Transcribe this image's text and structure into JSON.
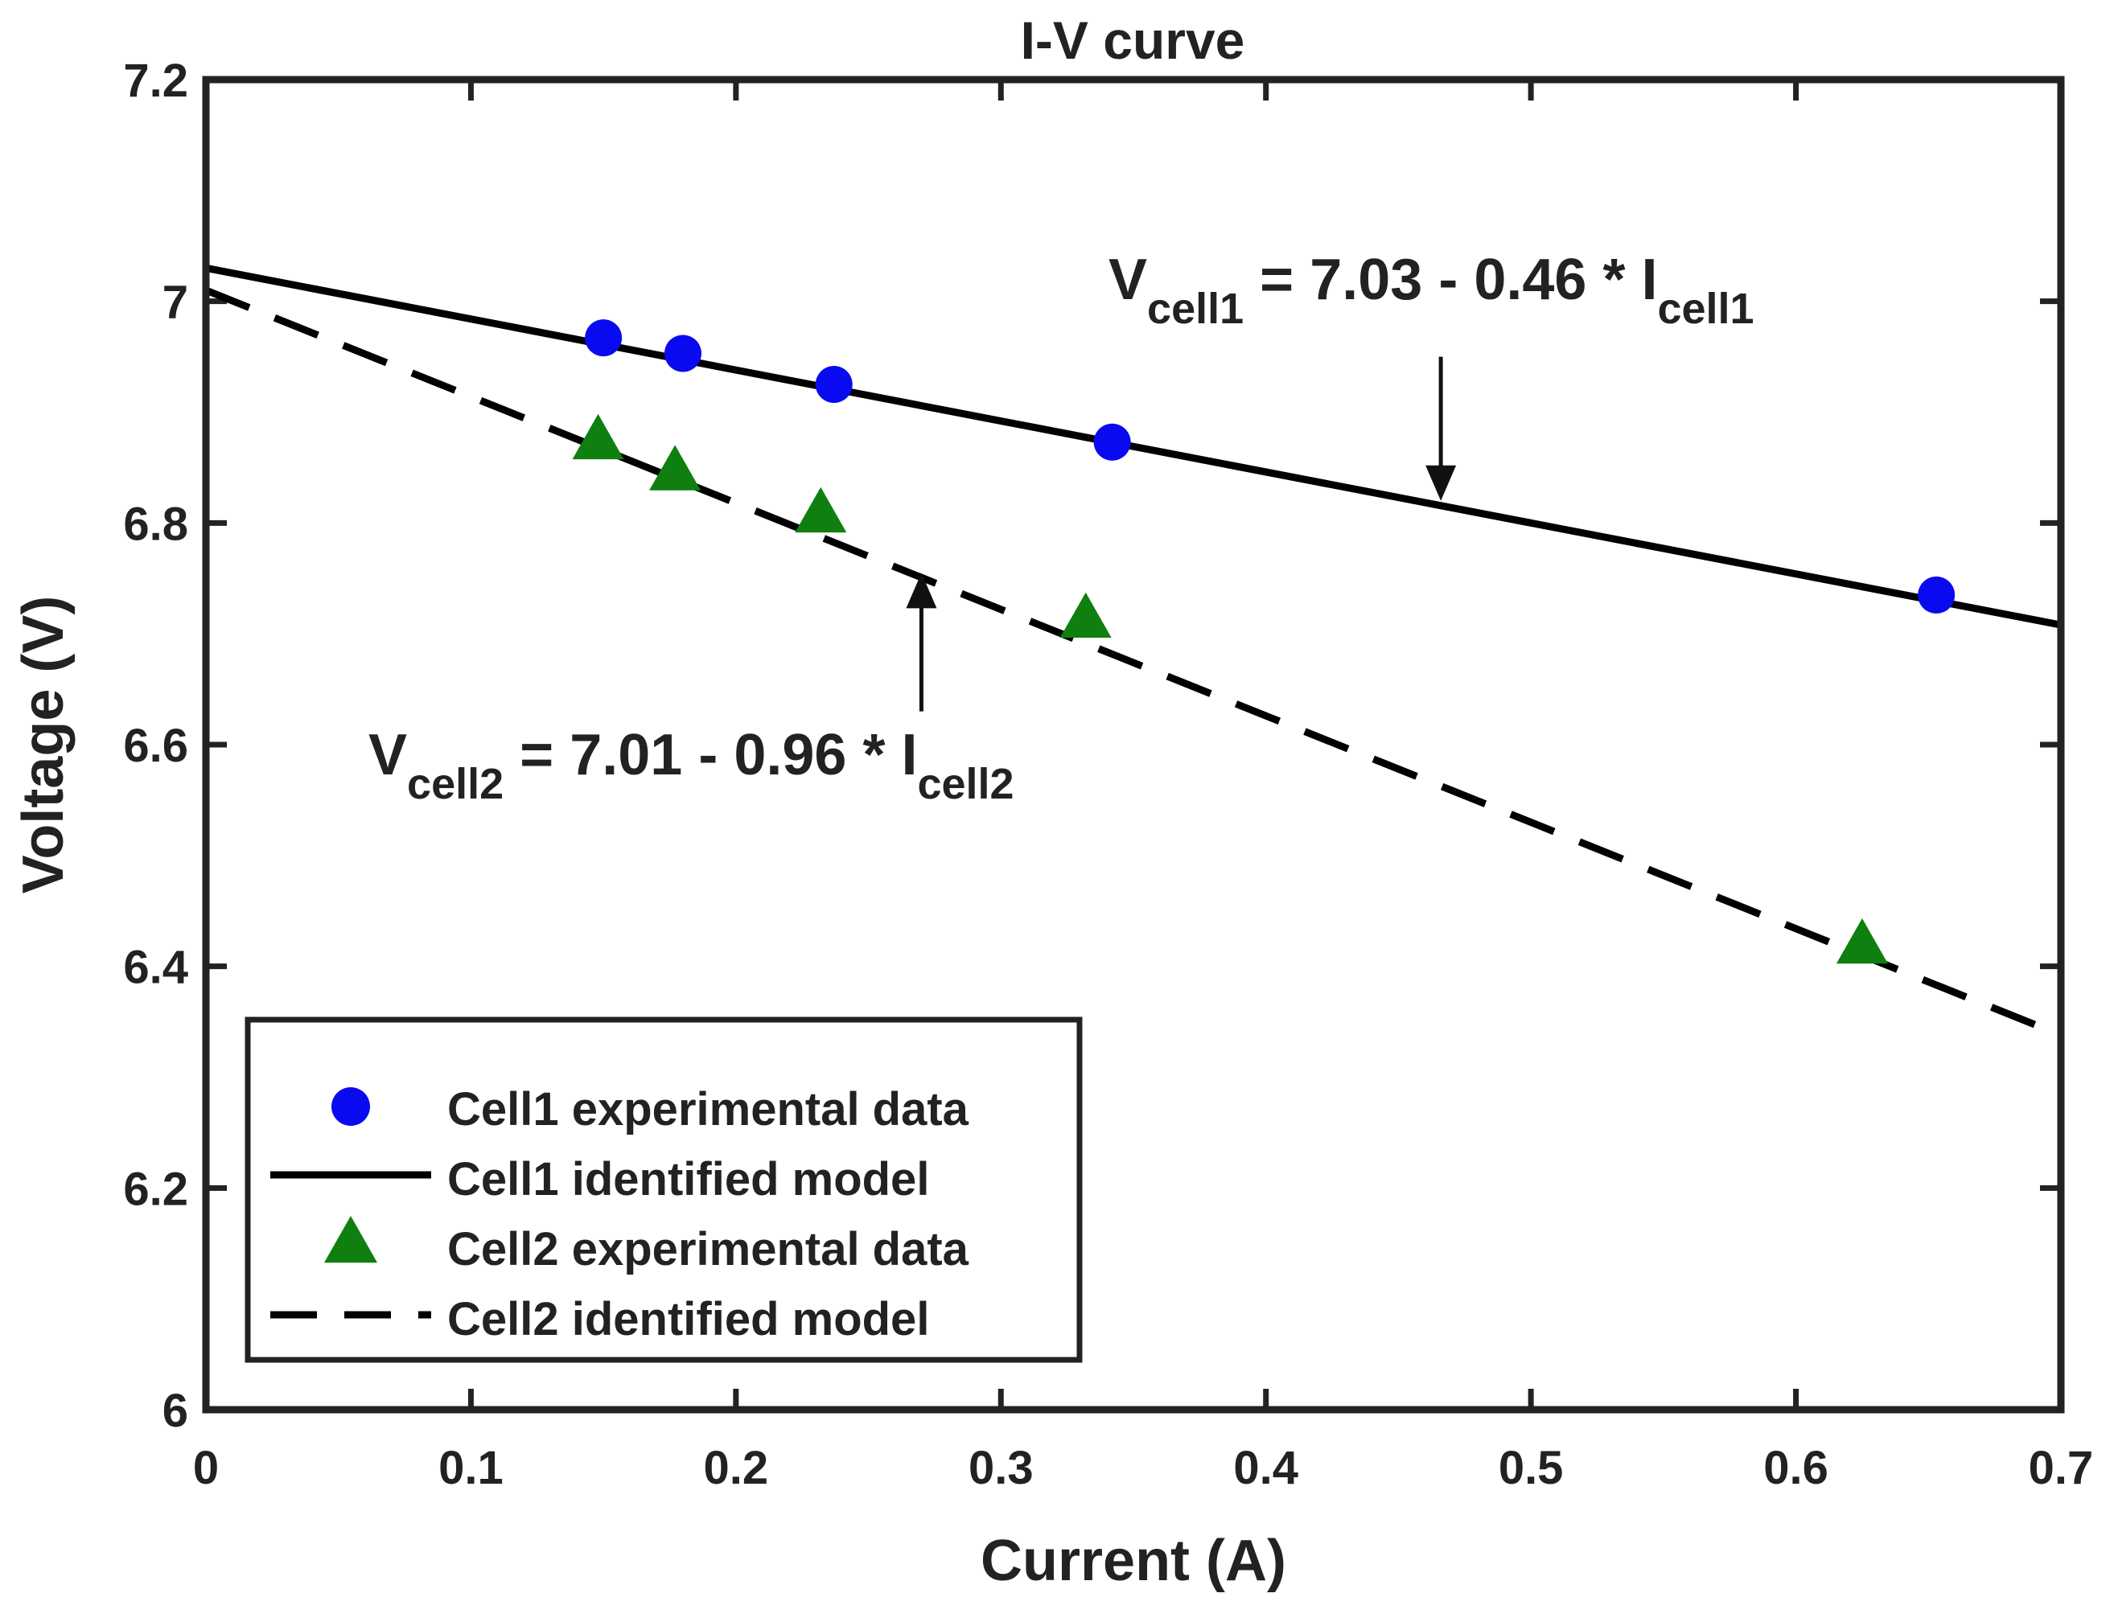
{
  "chart_data": {
    "type": "scatter",
    "title": "I-V curve",
    "xlabel": "Current (A)",
    "ylabel": "Voltage (V)",
    "xlim": [
      0,
      0.7
    ],
    "ylim": [
      6,
      7.2
    ],
    "xticks": [
      0,
      0.1,
      0.2,
      0.3,
      0.4,
      0.5,
      0.6,
      0.7
    ],
    "xtick_labels": [
      "0",
      "0.1",
      "0.2",
      "0.3",
      "0.4",
      "0.5",
      "0.6",
      "0.7"
    ],
    "yticks": [
      6,
      6.2,
      6.4,
      6.6,
      6.8,
      7,
      7.2
    ],
    "ytick_labels": [
      "6",
      "6.2",
      "6.4",
      "6.6",
      "6.8",
      "7",
      "7.2"
    ],
    "grid": false,
    "legend_position": "bottom-left",
    "series": [
      {
        "name": "Cell1 experimental data",
        "kind": "scatter",
        "marker": "circle",
        "color": "#0a0af0",
        "x": [
          0.15,
          0.18,
          0.237,
          0.342,
          0.653
        ],
        "y": [
          6.967,
          6.953,
          6.925,
          6.873,
          6.735
        ]
      },
      {
        "name": "Cell1 identified model",
        "kind": "line",
        "style": "solid",
        "color": "#000000",
        "intercept": 7.03,
        "slope": -0.46
      },
      {
        "name": "Cell2 experimental data",
        "kind": "scatter",
        "marker": "triangle",
        "color": "#0f7f0f",
        "x": [
          0.148,
          0.177,
          0.232,
          0.332,
          0.625
        ],
        "y": [
          6.873,
          6.845,
          6.807,
          6.712,
          6.418
        ]
      },
      {
        "name": "Cell2 identified model",
        "kind": "line",
        "style": "dashed",
        "color": "#000000",
        "intercept": 7.01,
        "slope": -0.96
      }
    ],
    "annotations": [
      {
        "id": "cell1",
        "lhs": "V",
        "lhs_sub": "cell1",
        "rhs": " = 7.03 - 0.46 * I",
        "rhs_sub": "cell1",
        "arrow_tail": [
          0.466,
          6.95
        ],
        "arrow_head": [
          0.466,
          6.82
        ]
      },
      {
        "id": "cell2",
        "lhs": "V",
        "lhs_sub": "cell2",
        "rhs": " = 7.01 - 0.96 * I",
        "rhs_sub": "cell2",
        "arrow_tail": [
          0.27,
          6.63
        ],
        "arrow_head": [
          0.27,
          6.755
        ]
      }
    ]
  }
}
